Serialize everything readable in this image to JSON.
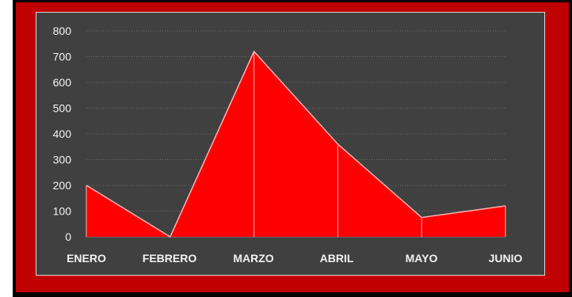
{
  "colors": {
    "outer": "#000000",
    "frame": "#c00000",
    "panel": "#404040",
    "area_fill": "#ff0000",
    "area_line": "#ffb3b3",
    "grid": "#6b6b6b",
    "text": "#f2f2f2"
  },
  "chart_data": {
    "type": "area",
    "title": "",
    "xlabel": "",
    "ylabel": "",
    "categories": [
      "ENERO",
      "FEBRERO",
      "MARZO",
      "ABRIL",
      "MAYO",
      "JUNIO"
    ],
    "values": [
      200,
      0,
      720,
      360,
      75,
      120
    ],
    "ylim": [
      0,
      800
    ],
    "yticks": [
      0,
      100,
      200,
      300,
      400,
      500,
      600,
      700,
      800
    ],
    "grid": true,
    "legend": "none"
  }
}
